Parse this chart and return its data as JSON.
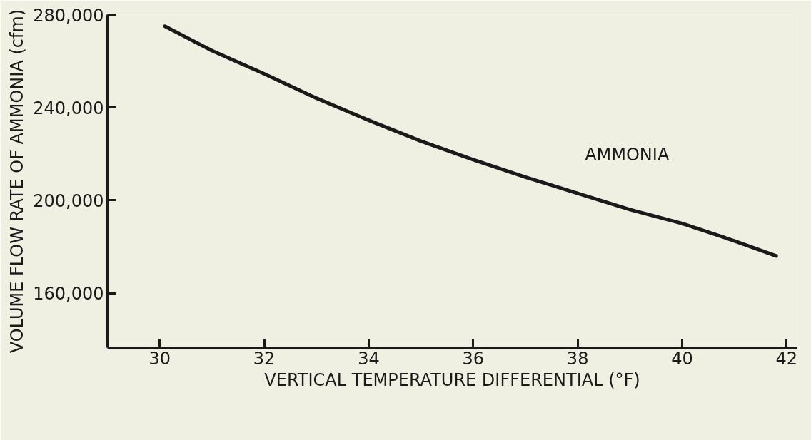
{
  "chart_data": {
    "type": "line",
    "xlabel": "VERTICAL TEMPERATURE DIFFERENTIAL (°F)",
    "ylabel": "VOLUME FLOW RATE OF AMMONIA (cfm)",
    "xlim": [
      29,
      42.2
    ],
    "ylim": [
      136500,
      280000
    ],
    "xticks": [
      30,
      32,
      34,
      36,
      38,
      40,
      42
    ],
    "yticks": [
      {
        "value": 160000,
        "label": "160,000"
      },
      {
        "value": 200000,
        "label": "200,000"
      },
      {
        "value": 240000,
        "label": "240,000"
      },
      {
        "value": 280000,
        "label": "280,000"
      }
    ],
    "grid": false,
    "legend": false,
    "marker": "none",
    "line_style": "solid",
    "series": [
      {
        "name": "AMMONIA",
        "color": "#1a1a1a",
        "x": [
          30.1,
          31,
          32,
          33,
          34,
          35,
          36,
          37,
          38,
          39,
          40,
          41,
          41.8
        ],
        "values": [
          275000,
          264500,
          254500,
          244000,
          234500,
          225500,
          217500,
          210000,
          203000,
          196000,
          190000,
          182500,
          176000
        ]
      }
    ]
  }
}
